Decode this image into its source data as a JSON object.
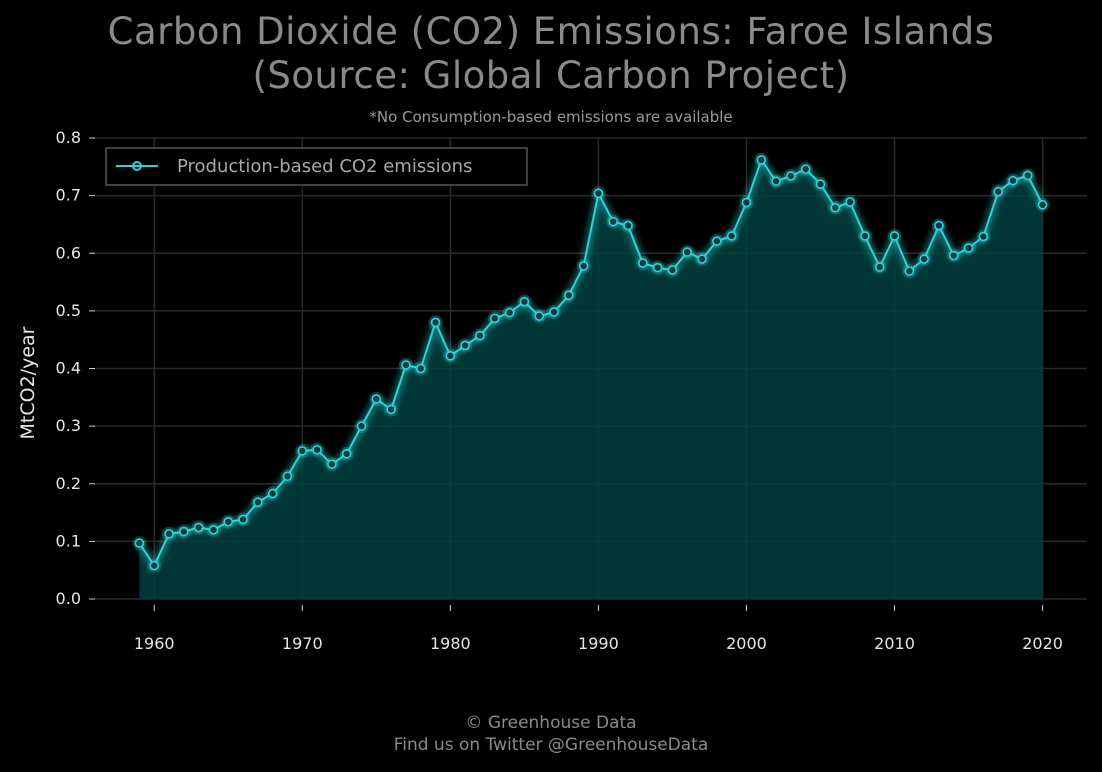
{
  "chart_data": {
    "type": "area",
    "title_lines": [
      "Carbon Dioxide (CO2) Emissions: Faroe Islands",
      "(Source: Global Carbon Project)"
    ],
    "subtitle": "*No Consumption-based emissions are available",
    "xlabel": "",
    "ylabel": "MtCO2/year",
    "xlim": [
      1956,
      2023
    ],
    "ylim": [
      0.0,
      0.8
    ],
    "x_ticks": [
      "1960",
      "1970",
      "1980",
      "1990",
      "2000",
      "2010",
      "2020"
    ],
    "y_ticks": [
      "0.0",
      "0.1",
      "0.2",
      "0.3",
      "0.4",
      "0.5",
      "0.6",
      "0.7",
      "0.8"
    ],
    "grid": true,
    "legend_position": "top-left",
    "colors": {
      "line": "#2fd3d8",
      "fill": "#00403f",
      "grid": "#2a2a2a",
      "background": "#000000"
    },
    "series": [
      {
        "name": "Production-based CO2 emissions",
        "x": [
          1959,
          1960,
          1961,
          1962,
          1963,
          1964,
          1965,
          1966,
          1967,
          1968,
          1969,
          1970,
          1971,
          1972,
          1973,
          1974,
          1975,
          1976,
          1977,
          1978,
          1979,
          1980,
          1981,
          1982,
          1983,
          1984,
          1985,
          1986,
          1987,
          1988,
          1989,
          1990,
          1991,
          1992,
          1993,
          1994,
          1995,
          1996,
          1997,
          1998,
          1999,
          2000,
          2001,
          2002,
          2003,
          2004,
          2005,
          2006,
          2007,
          2008,
          2009,
          2010,
          2011,
          2012,
          2013,
          2014,
          2015,
          2016,
          2017,
          2018,
          2019,
          2020
        ],
        "values": [
          0.097,
          0.058,
          0.113,
          0.117,
          0.124,
          0.12,
          0.134,
          0.138,
          0.168,
          0.183,
          0.213,
          0.257,
          0.259,
          0.234,
          0.252,
          0.3,
          0.347,
          0.329,
          0.406,
          0.4,
          0.48,
          0.422,
          0.44,
          0.457,
          0.487,
          0.497,
          0.516,
          0.491,
          0.498,
          0.527,
          0.578,
          0.704,
          0.655,
          0.648,
          0.583,
          0.575,
          0.571,
          0.602,
          0.59,
          0.621,
          0.63,
          0.688,
          0.762,
          0.725,
          0.734,
          0.746,
          0.72,
          0.679,
          0.689,
          0.63,
          0.576,
          0.63,
          0.569,
          0.59,
          0.648,
          0.596,
          0.609,
          0.629,
          0.707,
          0.726,
          0.735,
          0.684
        ]
      }
    ]
  },
  "footer": {
    "line1": "© Greenhouse Data",
    "line2": "Find us on Twitter @GreenhouseData"
  }
}
